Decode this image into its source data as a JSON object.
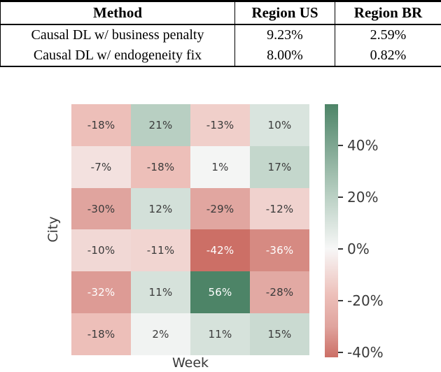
{
  "table": {
    "headers": [
      "Method",
      "Region US",
      "Region BR"
    ],
    "rows": [
      {
        "method": "Causal DL w/ business penalty",
        "region_us": "9.23%",
        "region_br": "2.59%"
      },
      {
        "method": "Causal DL w/ endogeneity fix",
        "region_us": "8.00%",
        "region_br": "0.82%"
      }
    ]
  },
  "chart_data": {
    "type": "heatmap",
    "xlabel": "Week",
    "ylabel": "City",
    "values": [
      [
        -18,
        21,
        -13,
        10
      ],
      [
        -7,
        -18,
        1,
        17
      ],
      [
        -30,
        12,
        -29,
        -12
      ],
      [
        -10,
        -11,
        -42,
        -36
      ],
      [
        -32,
        11,
        56,
        -28
      ],
      [
        -18,
        2,
        11,
        15
      ]
    ],
    "cell_label_suffix": "%",
    "vmin": -42,
    "vmax": 56,
    "white_text_threshold": 32,
    "axis_tick_labels": false,
    "grid": false,
    "colorbar": {
      "position": "right",
      "ticks": [
        {
          "value": 40,
          "label": "40%"
        },
        {
          "value": 20,
          "label": "20%"
        },
        {
          "value": 0,
          "label": "0%"
        },
        {
          "value": -20,
          "label": "-20%"
        },
        {
          "value": -40,
          "label": "-40%"
        }
      ]
    },
    "colormap_anchors": [
      {
        "value": 56,
        "color": "#4d8467"
      },
      {
        "value": 40,
        "color": "#7ea691"
      },
      {
        "value": 21,
        "color": "#b8cfc2"
      },
      {
        "value": 0,
        "color": "#f7f7f7"
      },
      {
        "value": -18,
        "color": "#edbfb9"
      },
      {
        "value": -30,
        "color": "#e0a49e"
      },
      {
        "value": -42,
        "color": "#cc6f66"
      }
    ],
    "text_colors": {
      "dark": "#3a3a3a",
      "light": "#ffffff"
    }
  }
}
